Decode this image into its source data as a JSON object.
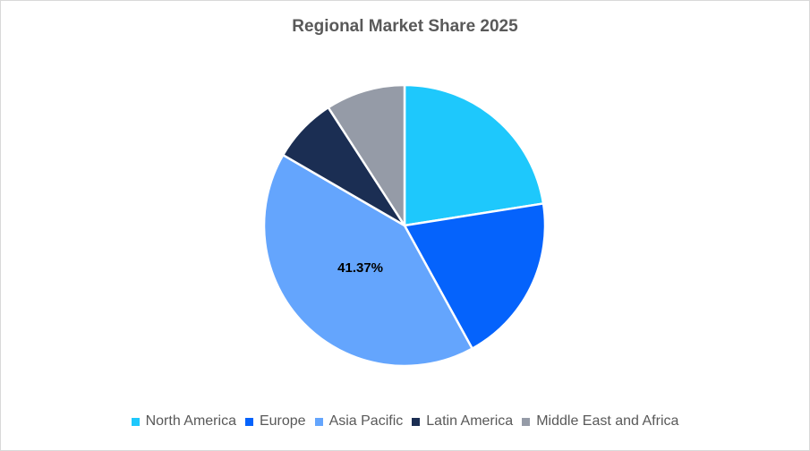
{
  "chart_data": {
    "type": "pie",
    "title": "Regional Market Share 2025",
    "categories": [
      "North America",
      "Europe",
      "Asia Pacific",
      "Latin America",
      "Middle East and Africa"
    ],
    "values": [
      22.5,
      19.5,
      41.37,
      7.5,
      9.13
    ],
    "colors": [
      "#1ec8fc",
      "#0563fc",
      "#64a5fd",
      "#1b2e53",
      "#959ba7"
    ],
    "data_labels": [
      "",
      "",
      "41.37%",
      "",
      ""
    ],
    "start_angle_deg": 0,
    "direction": "clockwise",
    "legend_position": "bottom"
  }
}
